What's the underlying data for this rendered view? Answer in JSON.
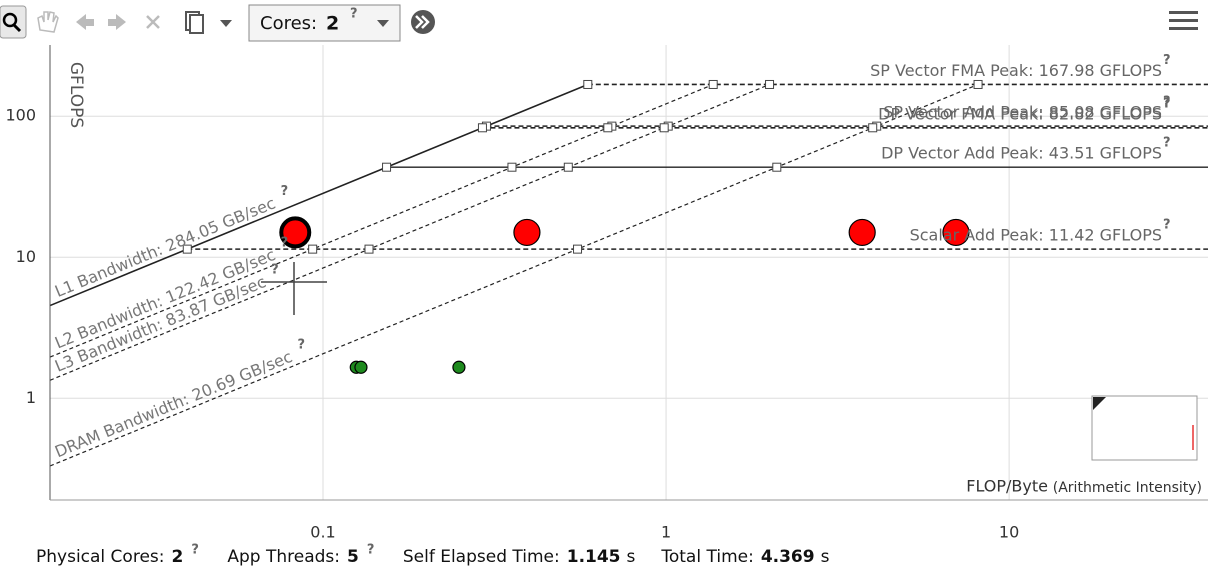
{
  "toolbar": {
    "cores_label": "Cores:",
    "cores_value": 2,
    "help_icon": "?"
  },
  "chart_data": {
    "type": "roofline",
    "y_label": "GFLOPS",
    "x_label": "FLOP/Byte",
    "x_label_note": "(Arithmetic Intensity)",
    "x_log": true,
    "y_log": true,
    "grid": true,
    "xlim": [
      0.016,
      38
    ],
    "ylim": [
      0.19,
      320
    ],
    "xticks": [
      0.1,
      1,
      10
    ],
    "yticks": [
      1,
      10,
      100
    ],
    "help_icon": "?",
    "roofs": [
      {
        "label": "SP Vector FMA Peak: 167.98 GFLOPS",
        "value": 167.98,
        "dashed": true
      },
      {
        "label": "SP Vector Add Peak: 85.08 GFLOPS",
        "value": 85.08,
        "dashed": true
      },
      {
        "label": "DP Vector FMA Peak: 82.82 GFLOPS",
        "value": 82.82,
        "dashed": true
      },
      {
        "label": "DP Vector Add Peak: 43.51 GFLOPS",
        "value": 43.51,
        "dashed": false
      },
      {
        "label": "Scalar Add Peak: 11.42 GFLOPS",
        "value": 11.42,
        "dashed": true
      }
    ],
    "bandwidths": [
      {
        "label": "L1 Bandwidth: 284.05 GB/sec",
        "value": 284.05,
        "dashed": false
      },
      {
        "label": "L2 Bandwidth: 122.42 GB/sec",
        "value": 122.42,
        "dashed": true
      },
      {
        "label": "L3 Bandwidth: 83.87 GB/sec",
        "value": 83.87,
        "dashed": true
      },
      {
        "label": "DRAM Bandwidth: 20.69 GB/sec",
        "value": 20.69,
        "dashed": true
      }
    ],
    "series": [
      {
        "color": "#ff0000",
        "size": 13,
        "selected": 0,
        "x": [
          0.083,
          0.393,
          3.73,
          7.0
        ],
        "values": [
          15,
          15,
          15,
          15
        ]
      },
      {
        "color": "#1e8a1e",
        "size": 6,
        "x": [
          0.125,
          0.129,
          0.249
        ],
        "values": [
          1.66,
          1.66,
          1.66
        ]
      }
    ]
  },
  "footer": [
    {
      "label": "Physical Cores:",
      "value": 2,
      "help": "?"
    },
    {
      "label": "App Threads:",
      "value": 5,
      "help": "?"
    },
    {
      "label": "Self Elapsed Time:",
      "value": 1.145,
      "unit": "s"
    },
    {
      "label": "Total Time:",
      "value": 4.369,
      "unit": "s"
    }
  ]
}
